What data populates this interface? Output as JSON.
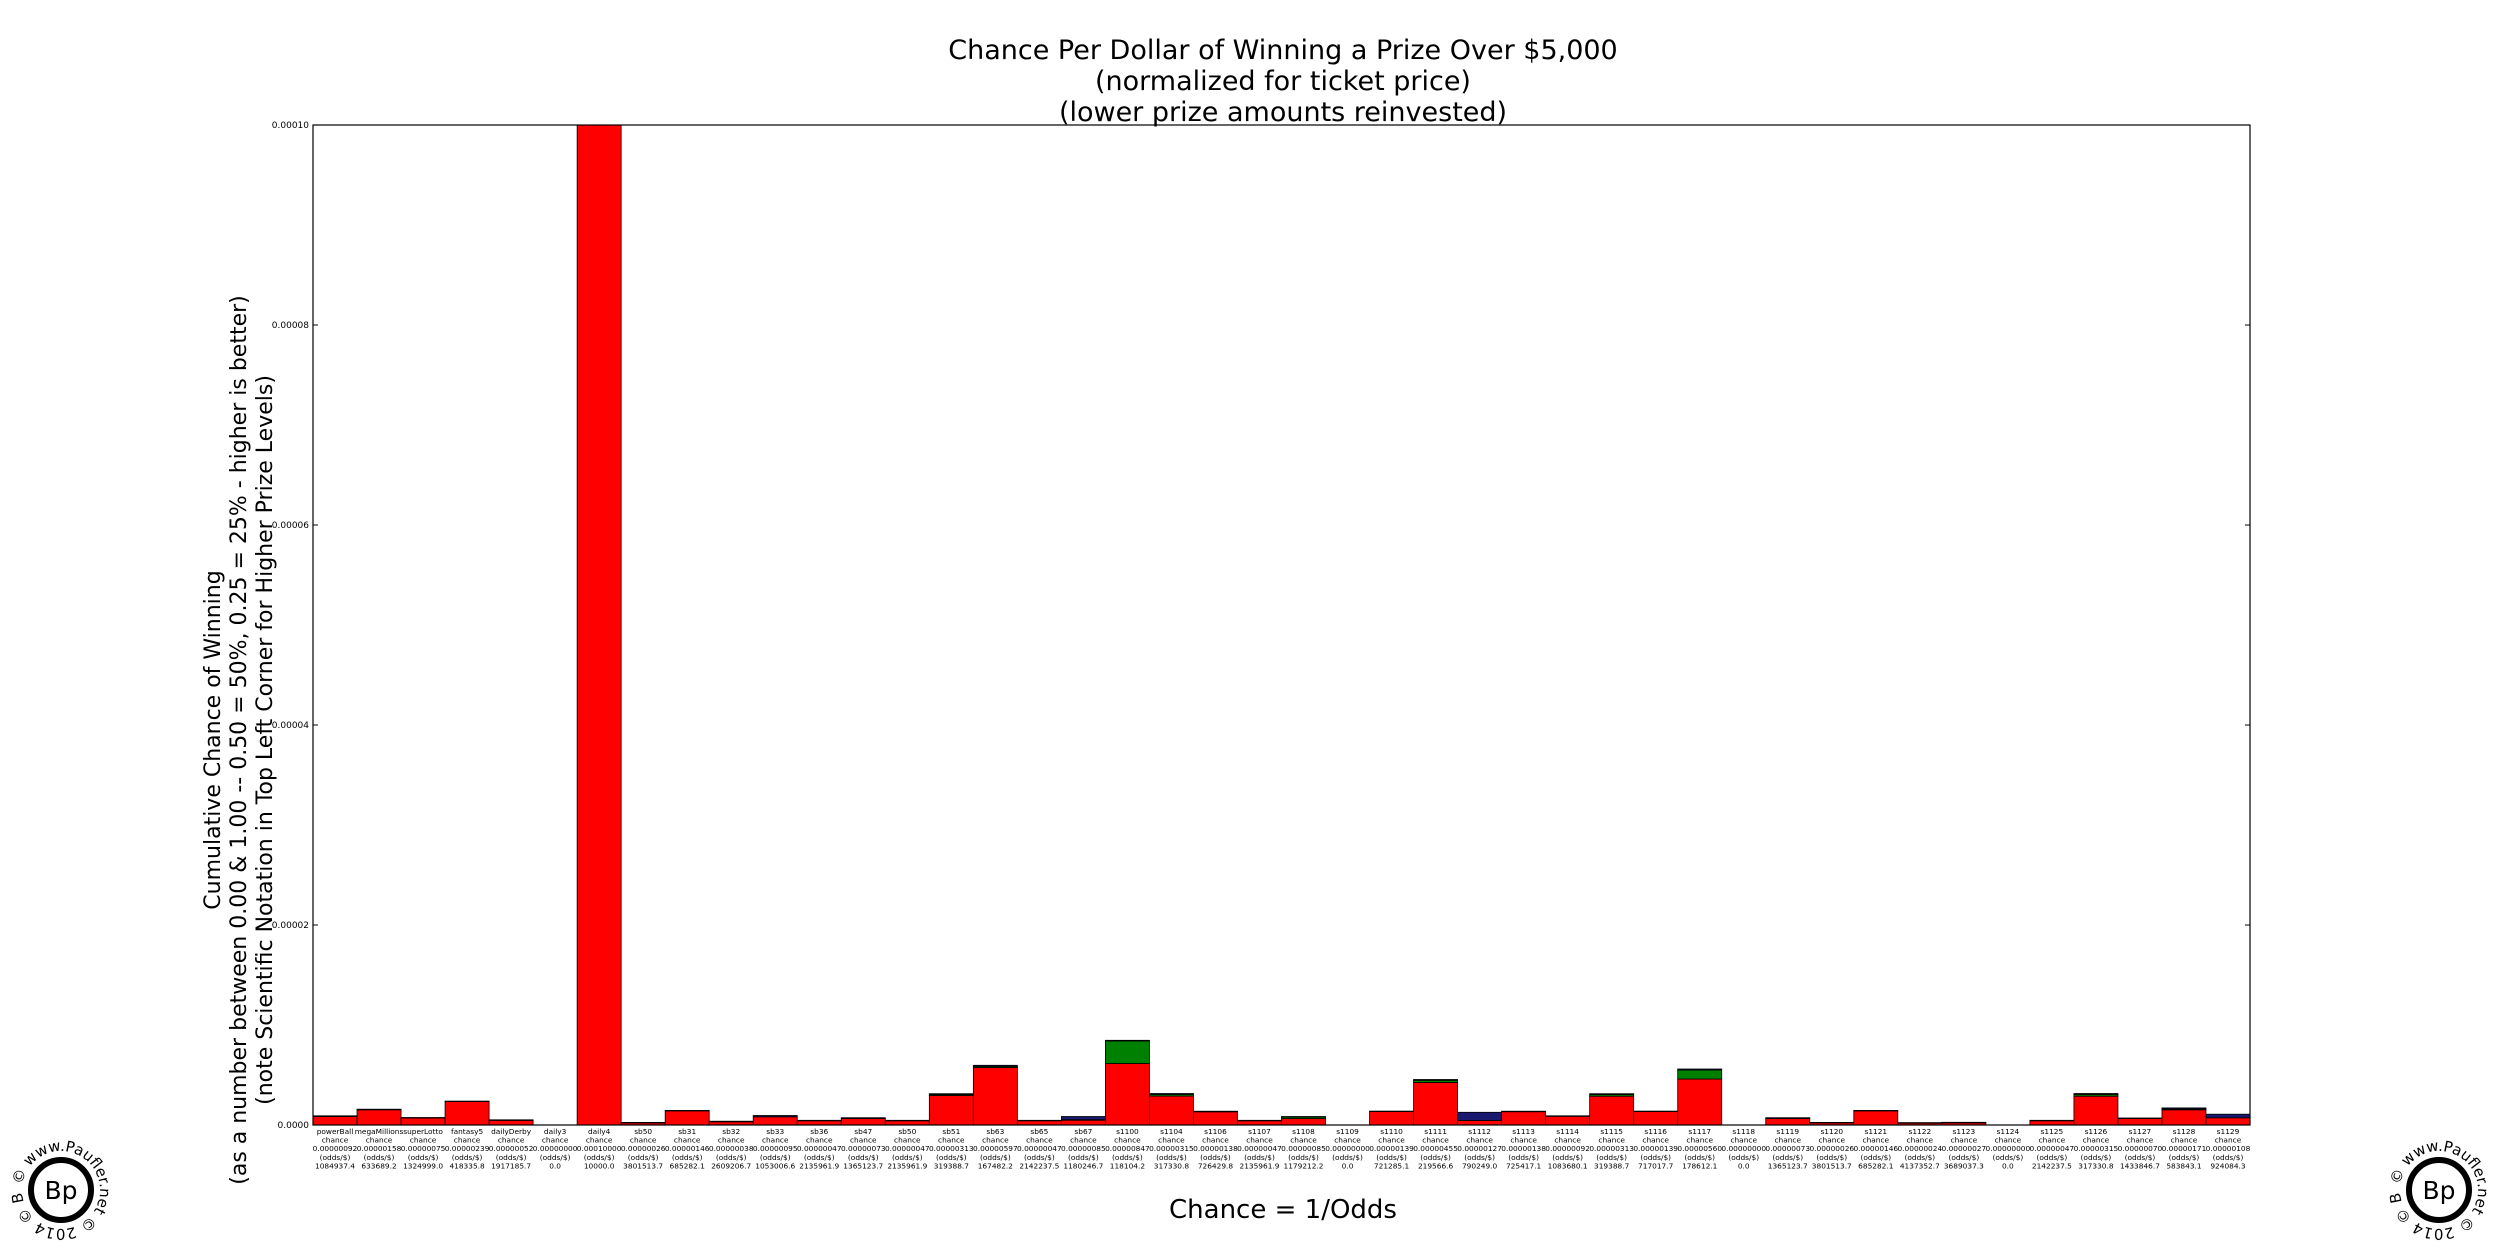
{
  "chart_data": {
    "type": "bar",
    "stacked": true,
    "title_lines": [
      "Chance Per Dollar of Winning a Prize Over $5,000",
      "(normalized for ticket price)",
      "(lower prize amounts reinvested)"
    ],
    "xlabel": "Chance = 1/Odds",
    "ylabel_lines": [
      "Cumulative Chance of Winning",
      "(as a number between 0.00 & 1.00 -- 0.50 = 50%, 0.25 = 25% - higher is better)",
      "(note Scientific Notation in Top Left Corner for Higher Prize Levels)"
    ],
    "ylim": [
      0,
      0.0001
    ],
    "yticks": [
      "0.0000",
      "0.00002",
      "0.00004",
      "0.00006",
      "0.00008",
      "0.00010"
    ],
    "grid": false,
    "colors": {
      "red": "#ff0000",
      "green": "#008000",
      "navy": "#191970",
      "edge": "#000000"
    },
    "bars": [
      {
        "name": "powerBall",
        "chance": "0.00000092",
        "odds": "1084937.4",
        "red": 8.4e-07,
        "green": 0,
        "navy": 8e-08
      },
      {
        "name": "megaMillions",
        "chance": "0.00000158",
        "odds": "633689.2",
        "red": 1.52e-06,
        "green": 0,
        "navy": 6e-08
      },
      {
        "name": "superLotto",
        "chance": "0.00000075",
        "odds": "1324999.0",
        "red": 7e-07,
        "green": 0,
        "navy": 5e-08
      },
      {
        "name": "fantasy5",
        "chance": "0.00000239",
        "odds": "418335.8",
        "red": 2.36e-06,
        "green": 0,
        "navy": 3e-08
      },
      {
        "name": "dailyDerby",
        "chance": "0.00000052",
        "odds": "1917185.7",
        "red": 4.6e-07,
        "green": 0,
        "navy": 6e-08
      },
      {
        "name": "daily3",
        "chance": "0.00000000",
        "odds": "0.0",
        "red": 0,
        "green": 0,
        "navy": 0
      },
      {
        "name": "daily4",
        "chance": "0.00010000",
        "odds": "10000.0",
        "red": 0.0001,
        "green": 0,
        "navy": 0
      },
      {
        "name": "sb50",
        "chance": "0.00000026",
        "odds": "3801513.7",
        "red": 2.1e-07,
        "green": 0,
        "navy": 5e-08
      },
      {
        "name": "sb31",
        "chance": "0.00000146",
        "odds": "685282.1",
        "red": 1.41e-06,
        "green": 0,
        "navy": 5e-08
      },
      {
        "name": "sb32",
        "chance": "0.00000038",
        "odds": "2609206.7",
        "red": 3.2e-07,
        "green": 0,
        "navy": 6e-08
      },
      {
        "name": "sb33",
        "chance": "0.00000095",
        "odds": "1053006.6",
        "red": 8.2e-07,
        "green": 0,
        "navy": 1.3e-07
      },
      {
        "name": "sb36",
        "chance": "0.00000047",
        "odds": "2135961.9",
        "red": 4.2e-07,
        "green": 0,
        "navy": 5e-08
      },
      {
        "name": "sb47",
        "chance": "0.00000073",
        "odds": "1365123.7",
        "red": 6.4e-07,
        "green": 0,
        "navy": 9e-08
      },
      {
        "name": "sb50",
        "chance": "0.00000047",
        "odds": "2135961.9",
        "red": 4.2e-07,
        "green": 0,
        "navy": 5e-08
      },
      {
        "name": "sb51",
        "chance": "0.00000313",
        "odds": "319388.7",
        "red": 2.95e-06,
        "green": 1e-07,
        "navy": 8e-08
      },
      {
        "name": "sb63",
        "chance": "0.00000597",
        "odds": "167482.2",
        "red": 5.75e-06,
        "green": 1.2e-07,
        "navy": 1e-07
      },
      {
        "name": "sb65",
        "chance": "0.00000047",
        "odds": "2142237.5",
        "red": 4.2e-07,
        "green": 0,
        "navy": 5e-08
      },
      {
        "name": "sb67",
        "chance": "0.00000085",
        "odds": "1180246.7",
        "red": 4.8e-07,
        "green": 5e-08,
        "navy": 3.2e-07
      },
      {
        "name": "s1100",
        "chance": "0.00000847",
        "odds": "118104.2",
        "red": 6.15e-06,
        "green": 2.25e-06,
        "navy": 7e-08
      },
      {
        "name": "s1104",
        "chance": "0.00000315",
        "odds": "317330.8",
        "red": 2.89e-06,
        "green": 1.7e-07,
        "navy": 9e-08
      },
      {
        "name": "s1106",
        "chance": "0.00000138",
        "odds": "726429.8",
        "red": 1.32e-06,
        "green": 0,
        "navy": 6e-08
      },
      {
        "name": "s1107",
        "chance": "0.00000047",
        "odds": "2135961.9",
        "red": 4.2e-07,
        "green": 0,
        "navy": 5e-08
      },
      {
        "name": "s1108",
        "chance": "0.00000085",
        "odds": "1179212.2",
        "red": 6.4e-07,
        "green": 1.6e-07,
        "navy": 5e-08
      },
      {
        "name": "s1109",
        "chance": "0.00000000",
        "odds": "0.0",
        "red": 0,
        "green": 0,
        "navy": 0
      },
      {
        "name": "s1110",
        "chance": "0.00000139",
        "odds": "721285.1",
        "red": 1.34e-06,
        "green": 0,
        "navy": 5e-08
      },
      {
        "name": "s1111",
        "chance": "0.00000455",
        "odds": "219566.6",
        "red": 4.25e-06,
        "green": 2.2e-07,
        "navy": 8e-08
      },
      {
        "name": "s1112",
        "chance": "0.00000127",
        "odds": "790249.0",
        "red": 4.5e-07,
        "green": 0,
        "navy": 8.2e-07
      },
      {
        "name": "s1113",
        "chance": "0.00000138",
        "odds": "725417.1",
        "red": 1.33e-06,
        "green": 0,
        "navy": 5e-08
      },
      {
        "name": "s1114",
        "chance": "0.00000092",
        "odds": "1083680.1",
        "red": 8.7e-07,
        "green": 0,
        "navy": 5e-08
      },
      {
        "name": "s1115",
        "chance": "0.00000313",
        "odds": "319388.7",
        "red": 2.88e-06,
        "green": 1.7e-07,
        "navy": 8e-08
      },
      {
        "name": "s1116",
        "chance": "0.00000139",
        "odds": "717017.7",
        "red": 1.34e-06,
        "green": 0,
        "navy": 5e-08
      },
      {
        "name": "s1117",
        "chance": "0.00000560",
        "odds": "178612.1",
        "red": 4.6e-06,
        "green": 9e-07,
        "navy": 1e-07
      },
      {
        "name": "s1118",
        "chance": "0.00000000",
        "odds": "0.0",
        "red": 0,
        "green": 0,
        "navy": 0
      },
      {
        "name": "s1119",
        "chance": "0.00000073",
        "odds": "1365123.7",
        "red": 6.4e-07,
        "green": 0,
        "navy": 9e-08
      },
      {
        "name": "s1120",
        "chance": "0.00000026",
        "odds": "3801513.7",
        "red": 2.1e-07,
        "green": 0,
        "navy": 5e-08
      },
      {
        "name": "s1121",
        "chance": "0.00000146",
        "odds": "685282.1",
        "red": 1.41e-06,
        "green": 0,
        "navy": 5e-08
      },
      {
        "name": "s1122",
        "chance": "0.00000024",
        "odds": "4137352.7",
        "red": 1.8e-07,
        "green": 0,
        "navy": 6e-08
      },
      {
        "name": "s1123",
        "chance": "0.00000027",
        "odds": "3689037.3",
        "red": 2.1e-07,
        "green": 0,
        "navy": 6e-08
      },
      {
        "name": "s1124",
        "chance": "0.00000000",
        "odds": "0.0",
        "red": 0,
        "green": 0,
        "navy": 0
      },
      {
        "name": "s1125",
        "chance": "0.00000047",
        "odds": "2142237.5",
        "red": 4.2e-07,
        "green": 0,
        "navy": 5e-08
      },
      {
        "name": "s1126",
        "chance": "0.00000315",
        "odds": "317330.8",
        "red": 2.88e-06,
        "green": 1.8e-07,
        "navy": 9e-08
      },
      {
        "name": "s1127",
        "chance": "0.00000070",
        "odds": "1433846.7",
        "red": 6.4e-07,
        "green": 0,
        "navy": 6e-08
      },
      {
        "name": "s1128",
        "chance": "0.00000171",
        "odds": "583843.1",
        "red": 1.52e-06,
        "green": 9e-08,
        "navy": 1e-07
      },
      {
        "name": "s1129",
        "chance": "0.00000108",
        "odds": "924084.3",
        "red": 7.2e-07,
        "green": 0,
        "navy": 3.6e-07
      }
    ],
    "row2_label": "chance",
    "row4_label": "(odds/$)"
  },
  "watermark": {
    "circle_text": "© www.Paufler.net  © 2014 © Brett Paufler ",
    "initials": "Bp"
  }
}
